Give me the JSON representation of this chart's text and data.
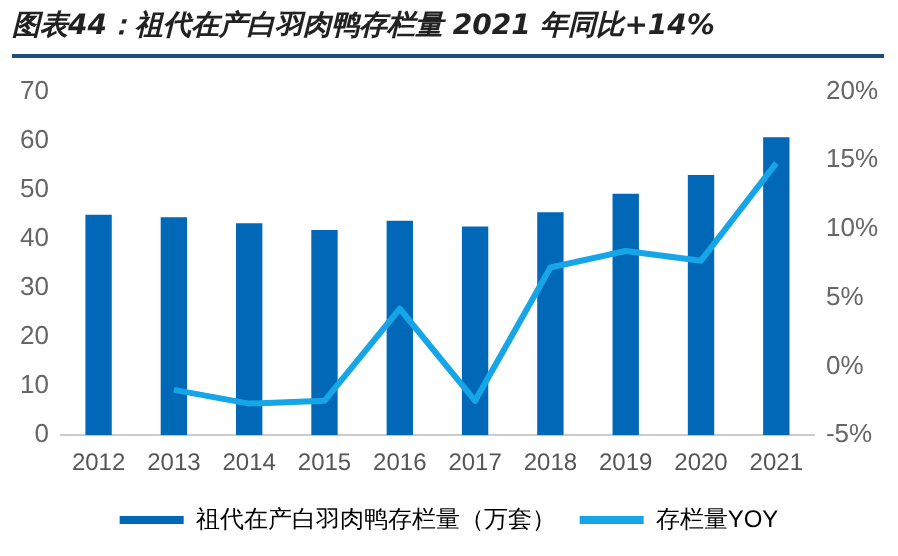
{
  "chart_data": {
    "type": "bar",
    "title": "图表44：祖代在产白羽肉鸭存栏量 2021 年同比+14%",
    "categories": [
      "2012",
      "2013",
      "2014",
      "2015",
      "2016",
      "2017",
      "2018",
      "2019",
      "2020",
      "2021"
    ],
    "series": [
      {
        "name": "祖代在产白羽肉鸭存栏量（万套）",
        "color": "#0068b7",
        "values": [
          44.9,
          44.4,
          43.2,
          41.8,
          43.7,
          42.5,
          45.4,
          49.2,
          53,
          60.7
        ]
      },
      {
        "name": "存栏量YOY",
        "type": "line",
        "axis": "y2",
        "color": "#16a6e8",
        "values": [
          null,
          -1.7,
          -2.7,
          -2.5,
          4.2,
          -2.5,
          7.2,
          8.4,
          7.7,
          14.8
        ]
      }
    ],
    "ylim": [
      0,
      70
    ],
    "yticks": [
      0,
      10,
      20,
      30,
      40,
      50,
      60,
      70
    ],
    "y2lim": [
      -5,
      20
    ],
    "y2ticks": [
      {
        "value": -5,
        "label": "-5%"
      },
      {
        "value": 0,
        "label": "0%"
      },
      {
        "value": 5,
        "label": "5%"
      },
      {
        "value": 10,
        "label": "10%"
      },
      {
        "value": 15,
        "label": "15%"
      },
      {
        "value": 20,
        "label": "20%"
      }
    ],
    "grid": false,
    "legend": "bottom",
    "marker": "none"
  }
}
